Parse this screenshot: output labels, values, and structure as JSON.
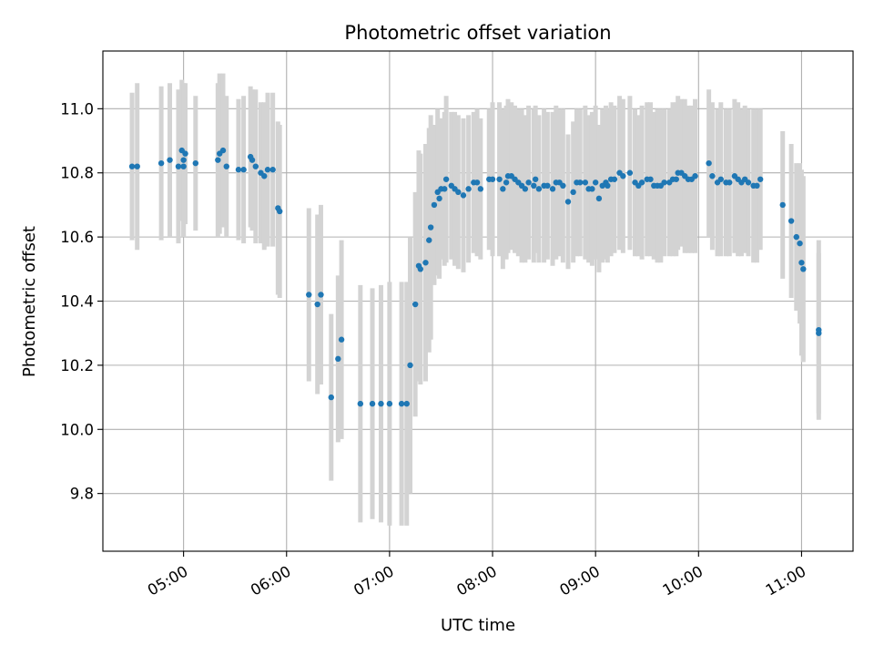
{
  "chart_data": {
    "type": "scatter",
    "title": "Photometric offset variation",
    "xlabel": "UTC time",
    "ylabel": "Photometric offset",
    "xlim": [
      "04:13",
      "11:30"
    ],
    "ylim": [
      9.62,
      11.18
    ],
    "grid": true,
    "x_ticks": [
      "05:00",
      "06:00",
      "07:00",
      "08:00",
      "09:00",
      "10:00",
      "11:00"
    ],
    "y_ticks": [
      9.8,
      10.0,
      10.2,
      10.4,
      10.6,
      10.8,
      11.0
    ],
    "y_tick_labels": [
      "9.8",
      "10.0",
      "10.2",
      "10.4",
      "10.6",
      "10.8",
      "11.0"
    ],
    "colors": {
      "point": "#1f77b4",
      "errorbar": "#d3d3d3",
      "grid": "#b0b0b0"
    },
    "series": [
      {
        "points": [
          [
            "04:30",
            10.82,
            0.23
          ],
          [
            "04:33",
            10.82,
            0.26
          ],
          [
            "04:47",
            10.83,
            0.24
          ],
          [
            "04:52",
            10.84,
            0.24
          ],
          [
            "04:57",
            10.82,
            0.24
          ],
          [
            "04:59",
            10.87,
            0.22
          ],
          [
            "05:00",
            10.84,
            0.24
          ],
          [
            "05:01",
            10.86,
            0.22
          ],
          [
            "05:00",
            10.82,
            0.22
          ],
          [
            "05:07",
            10.83,
            0.21
          ],
          [
            "05:20",
            10.84,
            0.24
          ],
          [
            "05:21",
            10.86,
            0.25
          ],
          [
            "05:23",
            10.87,
            0.24
          ],
          [
            "05:25",
            10.82,
            0.22
          ],
          [
            "05:32",
            10.81,
            0.22
          ],
          [
            "05:35",
            10.81,
            0.23
          ],
          [
            "05:39",
            10.85,
            0.22
          ],
          [
            "05:40",
            10.84,
            0.22
          ],
          [
            "05:42",
            10.82,
            0.24
          ],
          [
            "05:45",
            10.8,
            0.22
          ],
          [
            "05:47",
            10.79,
            0.23
          ],
          [
            "05:49",
            10.81,
            0.24
          ],
          [
            "05:52",
            10.81,
            0.24
          ],
          [
            "05:55",
            10.69,
            0.27
          ],
          [
            "05:56",
            10.68,
            0.27
          ],
          [
            "06:13",
            10.42,
            0.27
          ],
          [
            "06:18",
            10.39,
            0.28
          ],
          [
            "06:20",
            10.42,
            0.28
          ],
          [
            "06:26",
            10.1,
            0.26
          ],
          [
            "06:30",
            10.22,
            0.26
          ],
          [
            "06:32",
            10.28,
            0.31
          ],
          [
            "06:43",
            10.08,
            0.37
          ],
          [
            "06:50",
            10.08,
            0.36
          ],
          [
            "06:55",
            10.08,
            0.37
          ],
          [
            "07:00",
            10.08,
            0.38
          ],
          [
            "07:07",
            10.08,
            0.38
          ],
          [
            "07:10",
            10.08,
            0.38
          ],
          [
            "07:12",
            10.2,
            0.4
          ],
          [
            "07:15",
            10.39,
            0.35
          ],
          [
            "07:17",
            10.51,
            0.36
          ],
          [
            "07:18",
            10.5,
            0.36
          ],
          [
            "07:21",
            10.52,
            0.37
          ],
          [
            "07:23",
            10.59,
            0.35
          ],
          [
            "07:24",
            10.63,
            0.35
          ],
          [
            "07:26",
            10.7,
            0.25
          ],
          [
            "07:28",
            10.74,
            0.26
          ],
          [
            "07:29",
            10.72,
            0.25
          ],
          [
            "07:30",
            10.75,
            0.22
          ],
          [
            "07:32",
            10.75,
            0.24
          ],
          [
            "07:33",
            10.78,
            0.26
          ],
          [
            "07:36",
            10.76,
            0.23
          ],
          [
            "07:38",
            10.75,
            0.24
          ],
          [
            "07:40",
            10.74,
            0.24
          ],
          [
            "07:43",
            10.73,
            0.24
          ],
          [
            "07:46",
            10.75,
            0.23
          ],
          [
            "07:49",
            10.77,
            0.22
          ],
          [
            "07:51",
            10.77,
            0.23
          ],
          [
            "07:53",
            10.75,
            0.22
          ],
          [
            "07:58",
            10.78,
            0.22
          ],
          [
            "08:00",
            10.78,
            0.24
          ],
          [
            "08:04",
            10.78,
            0.24
          ],
          [
            "08:06",
            10.75,
            0.25
          ],
          [
            "08:08",
            10.77,
            0.24
          ],
          [
            "08:09",
            10.79,
            0.24
          ],
          [
            "08:11",
            10.79,
            0.23
          ],
          [
            "08:13",
            10.78,
            0.23
          ],
          [
            "08:15",
            10.77,
            0.23
          ],
          [
            "08:17",
            10.76,
            0.24
          ],
          [
            "08:19",
            10.75,
            0.23
          ],
          [
            "08:21",
            10.77,
            0.24
          ],
          [
            "08:24",
            10.76,
            0.24
          ],
          [
            "08:25",
            10.78,
            0.23
          ],
          [
            "08:27",
            10.75,
            0.23
          ],
          [
            "08:30",
            10.76,
            0.24
          ],
          [
            "08:32",
            10.76,
            0.23
          ],
          [
            "08:35",
            10.75,
            0.24
          ],
          [
            "08:37",
            10.77,
            0.24
          ],
          [
            "08:39",
            10.77,
            0.23
          ],
          [
            "08:41",
            10.76,
            0.24
          ],
          [
            "08:44",
            10.71,
            0.21
          ],
          [
            "08:47",
            10.74,
            0.22
          ],
          [
            "08:49",
            10.77,
            0.23
          ],
          [
            "08:51",
            10.77,
            0.23
          ],
          [
            "08:54",
            10.77,
            0.24
          ],
          [
            "08:56",
            10.75,
            0.23
          ],
          [
            "08:58",
            10.75,
            0.24
          ],
          [
            "09:00",
            10.77,
            0.24
          ],
          [
            "09:02",
            10.72,
            0.23
          ],
          [
            "09:04",
            10.76,
            0.24
          ],
          [
            "09:06",
            10.77,
            0.24
          ],
          [
            "09:07",
            10.76,
            0.24
          ],
          [
            "09:09",
            10.78,
            0.24
          ],
          [
            "09:11",
            10.78,
            0.23
          ],
          [
            "09:14",
            10.8,
            0.24
          ],
          [
            "09:16",
            10.79,
            0.24
          ],
          [
            "09:20",
            10.8,
            0.24
          ],
          [
            "09:23",
            10.77,
            0.23
          ],
          [
            "09:25",
            10.76,
            0.22
          ],
          [
            "09:27",
            10.77,
            0.24
          ],
          [
            "09:30",
            10.78,
            0.24
          ],
          [
            "09:32",
            10.78,
            0.24
          ],
          [
            "09:34",
            10.76,
            0.23
          ],
          [
            "09:36",
            10.76,
            0.24
          ],
          [
            "09:38",
            10.76,
            0.24
          ],
          [
            "09:40",
            10.77,
            0.23
          ],
          [
            "09:43",
            10.77,
            0.23
          ],
          [
            "09:45",
            10.78,
            0.24
          ],
          [
            "09:47",
            10.78,
            0.24
          ],
          [
            "09:48",
            10.8,
            0.24
          ],
          [
            "09:50",
            10.8,
            0.23
          ],
          [
            "09:52",
            10.79,
            0.24
          ],
          [
            "09:54",
            10.78,
            0.23
          ],
          [
            "09:56",
            10.78,
            0.23
          ],
          [
            "09:58",
            10.79,
            0.24
          ],
          [
            "10:06",
            10.83,
            0.23
          ],
          [
            "10:08",
            10.79,
            0.23
          ],
          [
            "10:11",
            10.77,
            0.23
          ],
          [
            "10:13",
            10.78,
            0.24
          ],
          [
            "10:16",
            10.77,
            0.23
          ],
          [
            "10:18",
            10.77,
            0.23
          ],
          [
            "10:21",
            10.79,
            0.24
          ],
          [
            "10:23",
            10.78,
            0.24
          ],
          [
            "10:25",
            10.77,
            0.23
          ],
          [
            "10:27",
            10.78,
            0.23
          ],
          [
            "10:29",
            10.77,
            0.23
          ],
          [
            "10:32",
            10.76,
            0.24
          ],
          [
            "10:34",
            10.76,
            0.24
          ],
          [
            "10:36",
            10.78,
            0.22
          ],
          [
            "10:49",
            10.7,
            0.23
          ],
          [
            "10:54",
            10.65,
            0.24
          ],
          [
            "10:57",
            10.6,
            0.23
          ],
          [
            "10:59",
            10.58,
            0.25
          ],
          [
            "11:00",
            10.52,
            0.29
          ],
          [
            "11:01",
            10.5,
            0.29
          ],
          [
            "11:10",
            10.3,
            0.25
          ],
          [
            "11:10",
            10.31,
            0.28
          ]
        ]
      }
    ]
  }
}
